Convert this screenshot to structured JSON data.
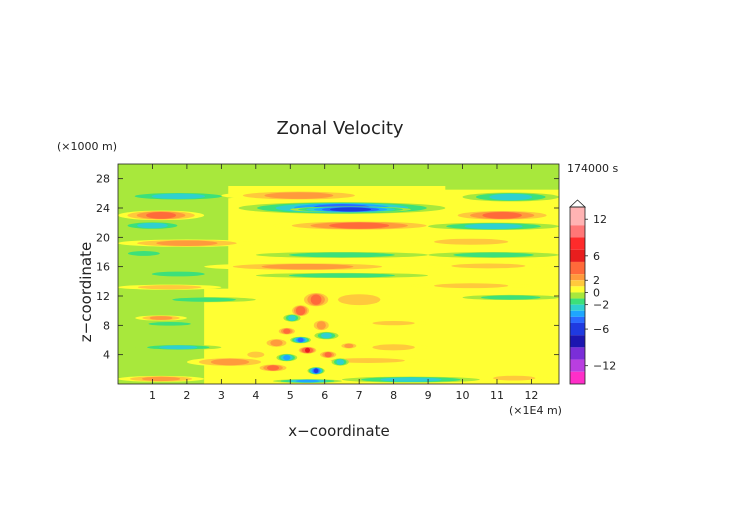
{
  "chart_data": {
    "type": "heatmap",
    "title": "Zonal Velocity",
    "xlabel": "x−coordinate",
    "ylabel": "z−coordinate",
    "x_unit": "(×1E4 m)",
    "y_unit": "(×1000 m)",
    "time_label": "174000 s",
    "xlim": [
      0,
      12.8
    ],
    "ylim": [
      0,
      30
    ],
    "x_ticks": [
      1,
      2,
      3,
      4,
      5,
      6,
      7,
      8,
      9,
      10,
      11,
      12
    ],
    "y_ticks": [
      4,
      8,
      12,
      16,
      20,
      24,
      28
    ],
    "colorbar": {
      "tick_labels": [
        "12",
        "6",
        "2",
        "0",
        "−2",
        "−6",
        "−12"
      ],
      "tick_values": [
        12,
        6,
        2,
        0,
        -2,
        -6,
        -12
      ],
      "levels": [
        {
          "lo": 11,
          "hi": 14,
          "color": "#ffb3b3"
        },
        {
          "lo": 9,
          "hi": 11,
          "color": "#ff7777"
        },
        {
          "lo": 7,
          "hi": 9,
          "color": "#ff2b2b"
        },
        {
          "lo": 5,
          "hi": 7,
          "color": "#e81e1e"
        },
        {
          "lo": 3,
          "hi": 5,
          "color": "#ff6a3a"
        },
        {
          "lo": 2,
          "hi": 3,
          "color": "#ff9a3c"
        },
        {
          "lo": 1,
          "hi": 2,
          "color": "#ffc93c"
        },
        {
          "lo": 0,
          "hi": 1,
          "color": "#ffff33"
        },
        {
          "lo": -1,
          "hi": 0,
          "color": "#a8e83c"
        },
        {
          "lo": -2,
          "hi": -1,
          "color": "#3ce07a"
        },
        {
          "lo": -3,
          "hi": -2,
          "color": "#2fd0d0"
        },
        {
          "lo": -4,
          "hi": -3,
          "color": "#1ea6ff"
        },
        {
          "lo": -5,
          "hi": -4,
          "color": "#2a6aff"
        },
        {
          "lo": -7,
          "hi": -5,
          "color": "#1f3ae0"
        },
        {
          "lo": -9,
          "hi": -7,
          "color": "#1c16b0"
        },
        {
          "lo": -11,
          "hi": -9,
          "color": "#7a2ed8"
        },
        {
          "lo": -13,
          "hi": -11,
          "color": "#b93ee0"
        },
        {
          "lo": -15,
          "hi": -13,
          "color": "#ff2ec8"
        }
      ]
    },
    "bands": [
      {
        "x0": 0.0,
        "x1": 3.5,
        "z": 25.6,
        "h": 1.0,
        "v": -3
      },
      {
        "x0": 10.0,
        "x1": 12.8,
        "z": 25.5,
        "h": 1.2,
        "v": -3.5
      },
      {
        "x0": 3.0,
        "x1": 7.5,
        "z": 25.7,
        "h": 1.2,
        "v": 3.5
      },
      {
        "x0": 3.5,
        "x1": 9.5,
        "z": 24.0,
        "h": 1.6,
        "v": -5
      },
      {
        "x0": 5.0,
        "x1": 8.5,
        "z": 23.8,
        "h": 0.8,
        "v": -7
      },
      {
        "x0": 0.0,
        "x1": 2.5,
        "z": 23.0,
        "h": 1.3,
        "v": 4
      },
      {
        "x0": 9.5,
        "x1": 12.8,
        "z": 23.0,
        "h": 1.3,
        "v": 4
      },
      {
        "x0": 0.0,
        "x1": 2.0,
        "z": 21.6,
        "h": 1.0,
        "v": -3
      },
      {
        "x0": 4.5,
        "x1": 9.5,
        "z": 21.6,
        "h": 1.2,
        "v": 4
      },
      {
        "x0": 9.0,
        "x1": 12.8,
        "z": 21.5,
        "h": 1.0,
        "v": -3
      },
      {
        "x0": 0.0,
        "x1": 4.0,
        "z": 19.2,
        "h": 1.0,
        "v": 3
      },
      {
        "x0": 8.5,
        "x1": 12.0,
        "z": 19.4,
        "h": 1.0,
        "v": 2.5
      },
      {
        "x0": 0.0,
        "x1": 1.5,
        "z": 17.8,
        "h": 0.8,
        "v": -2.5
      },
      {
        "x0": 4.0,
        "x1": 9.0,
        "z": 17.6,
        "h": 0.8,
        "v": -2.5
      },
      {
        "x0": 9.0,
        "x1": 12.8,
        "z": 17.6,
        "h": 0.8,
        "v": -2.5
      },
      {
        "x0": 2.5,
        "x1": 8.5,
        "z": 16.0,
        "h": 1.0,
        "v": 3
      },
      {
        "x0": 0.5,
        "x1": 3.0,
        "z": 15.0,
        "h": 0.8,
        "v": -2.5
      },
      {
        "x0": 9.0,
        "x1": 12.5,
        "z": 16.1,
        "h": 0.8,
        "v": 2.5
      },
      {
        "x0": 4.0,
        "x1": 9.0,
        "z": 14.8,
        "h": 0.7,
        "v": -2.5
      },
      {
        "x0": 0.0,
        "x1": 3.0,
        "z": 13.2,
        "h": 0.7,
        "v": 2
      },
      {
        "x0": 8.5,
        "x1": 12.0,
        "z": 13.4,
        "h": 0.8,
        "v": 2
      },
      {
        "x0": 1.0,
        "x1": 4.0,
        "z": 11.5,
        "h": 0.7,
        "v": -2
      },
      {
        "x0": 6.0,
        "x1": 8.0,
        "z": 11.5,
        "h": 1.8,
        "v": 2.5
      },
      {
        "x0": 10.0,
        "x1": 12.8,
        "z": 11.8,
        "h": 0.7,
        "v": -2
      },
      {
        "x0": 0.5,
        "x1": 2.0,
        "z": 9.0,
        "h": 0.7,
        "v": 3
      },
      {
        "x0": 0.5,
        "x1": 2.5,
        "z": 8.2,
        "h": 0.6,
        "v": -2.5
      },
      {
        "x0": 7.0,
        "x1": 9.0,
        "z": 8.3,
        "h": 0.7,
        "v": 2.5
      },
      {
        "x0": 0.5,
        "x1": 3.0,
        "z": 5.0,
        "h": 0.7,
        "v": -3
      },
      {
        "x0": 7.0,
        "x1": 9.0,
        "z": 5.0,
        "h": 1.0,
        "v": 2.5
      },
      {
        "x0": 2.0,
        "x1": 4.5,
        "z": 3.0,
        "h": 1.2,
        "v": 3
      },
      {
        "x0": 5.5,
        "x1": 9.0,
        "z": 3.2,
        "h": 0.8,
        "v": 2.5
      },
      {
        "x0": 0.0,
        "x1": 2.5,
        "z": 0.7,
        "h": 0.8,
        "v": 3
      },
      {
        "x0": 6.5,
        "x1": 10.5,
        "z": 0.6,
        "h": 0.8,
        "v": -3
      },
      {
        "x0": 10.5,
        "x1": 12.5,
        "z": 0.8,
        "h": 0.8,
        "v": 2
      },
      {
        "x0": 4.5,
        "x1": 6.5,
        "z": 0.4,
        "h": 0.5,
        "v": -4
      }
    ],
    "plume": [
      {
        "x0": 5.0,
        "x1": 5.6,
        "z": 10.0,
        "h": 1.6,
        "v": 5
      },
      {
        "x0": 5.3,
        "x1": 6.2,
        "z": 11.5,
        "h": 2.0,
        "v": 4
      },
      {
        "x0": 4.8,
        "x1": 5.3,
        "z": 9.0,
        "h": 1.0,
        "v": -3.5
      },
      {
        "x0": 5.6,
        "x1": 6.2,
        "z": 8.0,
        "h": 1.5,
        "v": 3
      },
      {
        "x0": 4.6,
        "x1": 5.2,
        "z": 7.2,
        "h": 1.0,
        "v": 4
      },
      {
        "x0": 5.0,
        "x1": 5.6,
        "z": 6.0,
        "h": 0.9,
        "v": -5
      },
      {
        "x0": 5.7,
        "x1": 6.4,
        "z": 6.6,
        "h": 1.0,
        "v": -3.5
      },
      {
        "x0": 4.2,
        "x1": 5.0,
        "z": 5.6,
        "h": 1.2,
        "v": 3.5
      },
      {
        "x0": 5.2,
        "x1": 5.8,
        "z": 4.6,
        "h": 1.0,
        "v": 6
      },
      {
        "x0": 4.6,
        "x1": 5.2,
        "z": 3.6,
        "h": 1.0,
        "v": -4
      },
      {
        "x0": 5.8,
        "x1": 6.4,
        "z": 4.0,
        "h": 1.0,
        "v": 4
      },
      {
        "x0": 6.2,
        "x1": 6.7,
        "z": 3.0,
        "h": 1.0,
        "v": -3
      },
      {
        "x0": 5.5,
        "x1": 6.0,
        "z": 1.8,
        "h": 1.0,
        "v": -6
      },
      {
        "x0": 4.0,
        "x1": 5.0,
        "z": 2.2,
        "h": 1.0,
        "v": 4
      },
      {
        "x0": 3.6,
        "x1": 4.4,
        "z": 4.0,
        "h": 1.0,
        "v": 2.5
      },
      {
        "x0": 6.4,
        "x1": 7.0,
        "z": 5.2,
        "h": 0.8,
        "v": 3
      }
    ]
  }
}
